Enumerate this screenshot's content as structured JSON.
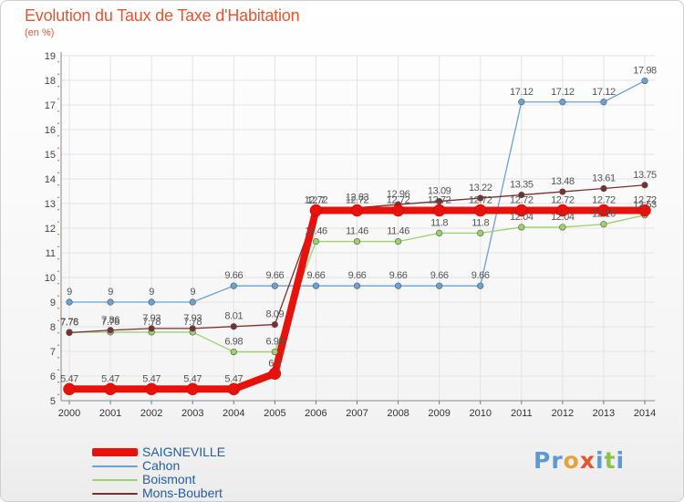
{
  "header": {
    "title": "Evolution du Taux de Taxe d'Habitation",
    "subtitle": "(en %)"
  },
  "chart_data": {
    "type": "line",
    "title": "Evolution du Taux de Taxe d'Habitation",
    "ylabel": "(en %)",
    "x": [
      "2000",
      "2001",
      "2002",
      "2003",
      "2004",
      "2005",
      "2006",
      "2007",
      "2008",
      "2009",
      "2010",
      "2011",
      "2012",
      "2013",
      "2014"
    ],
    "ylim": [
      5,
      19
    ],
    "yticks": [
      5,
      6,
      7,
      8,
      9,
      10,
      11,
      12,
      13,
      14,
      15,
      16,
      17,
      18,
      19
    ],
    "grid": true,
    "legend_position": "bottom-left",
    "series": [
      {
        "name": "SAIGNEVILLE",
        "color": "#e8120c",
        "values": [
          5.47,
          5.47,
          5.47,
          5.47,
          5.47,
          6.1,
          12.72,
          12.72,
          12.72,
          12.72,
          12.72,
          12.72,
          12.72,
          12.72,
          12.72
        ]
      },
      {
        "name": "Cahon",
        "color": "#6aa2d4",
        "values": [
          9,
          9,
          9,
          9,
          9.66,
          9.66,
          9.66,
          9.66,
          9.66,
          9.66,
          9.66,
          17.12,
          17.12,
          17.12,
          17.98
        ]
      },
      {
        "name": "Boismont",
        "color": "#9ad36a",
        "values": [
          7.78,
          7.78,
          7.78,
          7.78,
          6.98,
          6.98,
          11.46,
          11.46,
          11.46,
          11.8,
          11.8,
          12.04,
          12.04,
          12.16,
          12.53
        ]
      },
      {
        "name": "Mons-Boubert",
        "color": "#7a3030",
        "values": [
          7.76,
          7.86,
          7.93,
          7.93,
          8.01,
          8.09,
          12.7,
          12.83,
          12.96,
          13.09,
          13.22,
          13.35,
          13.48,
          13.61,
          13.75
        ]
      }
    ],
    "data_labels": [
      [
        "5.47",
        "5.47",
        "5.47",
        "5.47",
        "5.47",
        "6.1",
        "12.72",
        "12.72",
        "12.72",
        "12.72",
        "12.72",
        "12.72",
        "12.72",
        "12.72",
        "12.72"
      ],
      [
        "9",
        "9",
        "9",
        "9",
        "9.66",
        "9.66",
        "9.66",
        "9.66",
        "9.66",
        "9.66",
        "9.66",
        "17.12",
        "17.12",
        "17.12",
        "17.98"
      ],
      [
        "7.78",
        "7.78",
        "7.78",
        "7.78",
        "6.98",
        "6.98",
        "11.46",
        "11.46",
        "11.46",
        "11.8",
        "11.8",
        "12.04",
        "12.04",
        "12.16",
        "12.53"
      ],
      [
        "7.76",
        "7.86",
        "7.93",
        "7.93",
        "8.01",
        "8.09",
        "12.7",
        "12.83",
        "12.96",
        "13.09",
        "13.22",
        "13.35",
        "13.48",
        "13.61",
        "13.75"
      ]
    ]
  },
  "legend": {
    "items": [
      {
        "label": "SAIGNEVILLE",
        "color": "#e8120c"
      },
      {
        "label": "Cahon",
        "color": "#6aa2d4"
      },
      {
        "label": "Boismont",
        "color": "#9ad36a"
      },
      {
        "label": "Mons-Boubert",
        "color": "#7a3030"
      }
    ]
  },
  "logo": {
    "text": "Proxiti"
  }
}
